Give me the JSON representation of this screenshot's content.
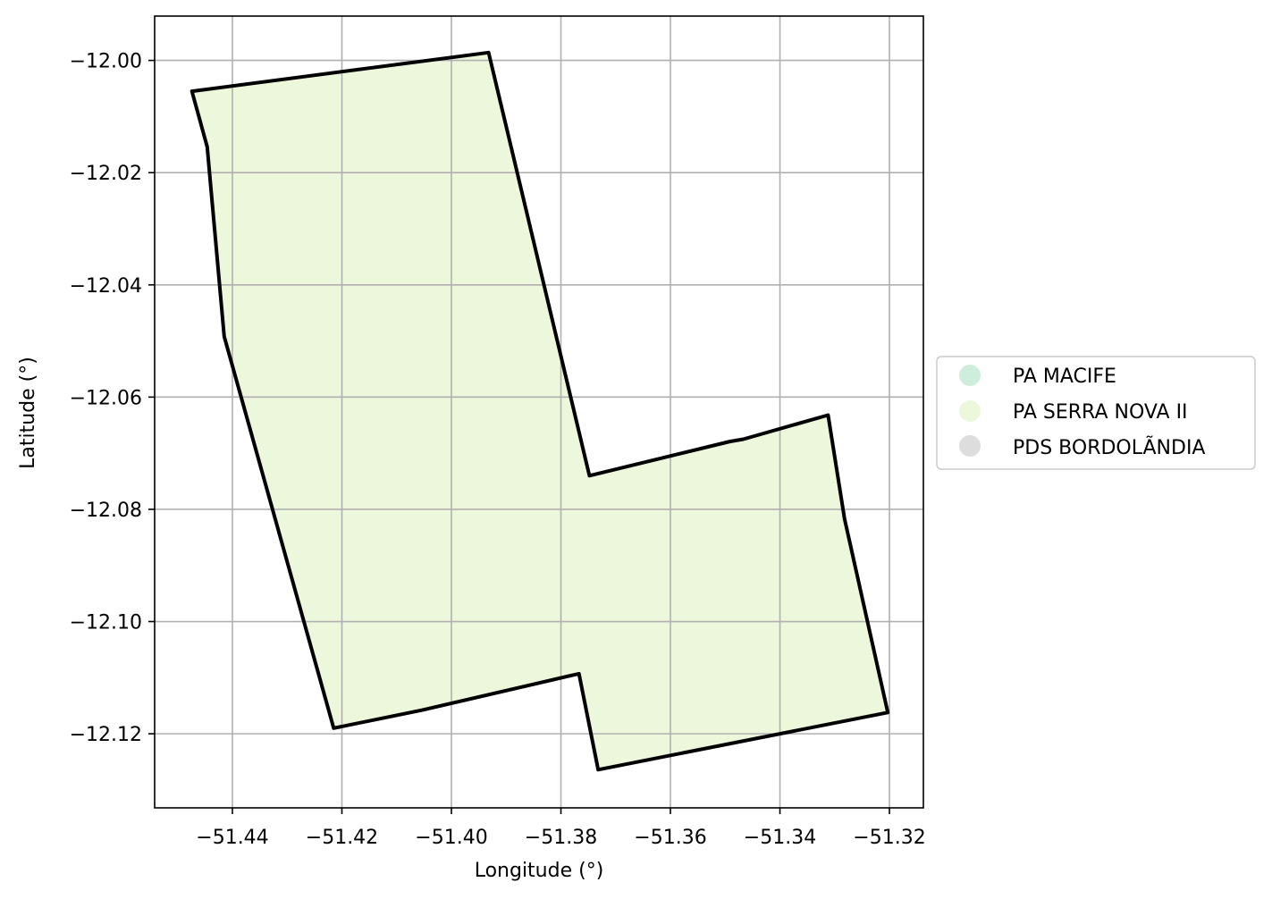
{
  "chart_data": {
    "type": "map",
    "xlabel": "Longitude (°)",
    "ylabel": "Latitude (°)",
    "xlim": [
      -51.4542,
      -51.3138
    ],
    "ylim": [
      -12.1332,
      -11.9921
    ],
    "x_ticks": [
      -51.44,
      -51.42,
      -51.4,
      -51.38,
      -51.36,
      -51.34,
      -51.32
    ],
    "x_tick_labels": [
      "−51.44",
      "−51.42",
      "−51.40",
      "−51.38",
      "−51.36",
      "−51.34",
      "−51.32"
    ],
    "y_ticks": [
      -12.0,
      -12.02,
      -12.04,
      -12.06,
      -12.08,
      -12.1,
      -12.12
    ],
    "y_tick_labels": [
      "−12.00",
      "−12.02",
      "−12.04",
      "−12.06",
      "−12.08",
      "−12.10",
      "−12.12"
    ],
    "grid": true,
    "legend_position": "right",
    "legend": [
      {
        "label": "PA MACIFE",
        "color": "#cdeedd"
      },
      {
        "label": "PA SERRA NOVA II",
        "color": "#ecf7db"
      },
      {
        "label": "PDS BORDOLÃNDIA",
        "color": "#dddddd"
      }
    ],
    "polygons": [
      {
        "name": "PA SERRA NOVA II",
        "fill": "#ecf7db",
        "stroke": "#000000",
        "coordinates": [
          [
            -51.4474,
            -12.0055
          ],
          [
            -51.3932,
            -11.9986
          ],
          [
            -51.3748,
            -12.074
          ],
          [
            -51.3491,
            -12.0679
          ],
          [
            -51.3467,
            -12.0675
          ],
          [
            -51.3312,
            -12.0632
          ],
          [
            -51.3282,
            -12.0817
          ],
          [
            -51.3203,
            -12.1162
          ],
          [
            -51.3732,
            -12.1264
          ],
          [
            -51.3767,
            -12.1093
          ],
          [
            -51.4054,
            -12.1158
          ],
          [
            -51.4215,
            -12.119
          ],
          [
            -51.4415,
            -12.0492
          ],
          [
            -51.4446,
            -12.0154
          ],
          [
            -51.4474,
            -12.0055
          ]
        ]
      }
    ]
  }
}
